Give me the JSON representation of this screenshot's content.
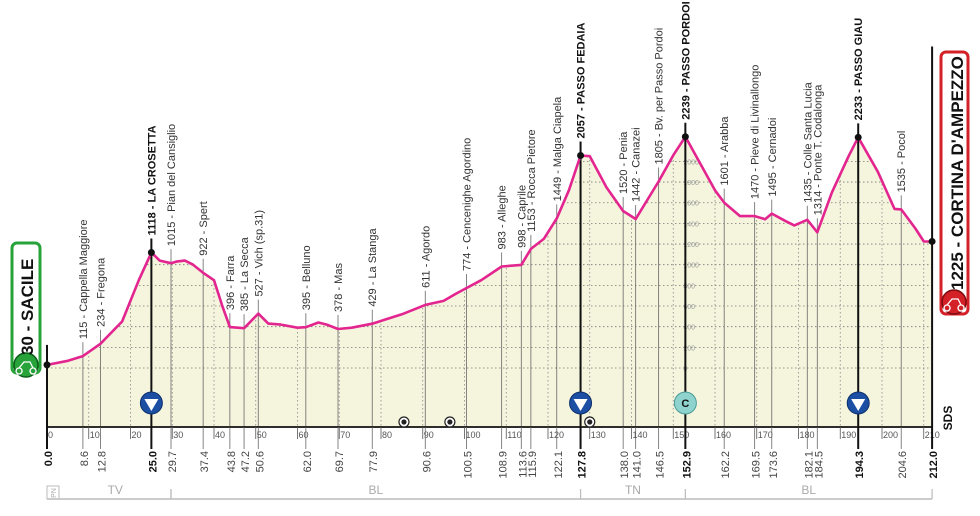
{
  "chart_data": {
    "type": "area",
    "xlabel": "",
    "ylabel": "",
    "xlim": [
      0,
      212
    ],
    "ylim": [
      0,
      2239
    ],
    "grid": true,
    "colors": {
      "line": "#e3258f",
      "fill": "#f5f5de",
      "start": "#27a33a",
      "finish": "#d42027",
      "kom": "#1c4fa3",
      "c_icon": "#8fd3cf"
    },
    "x_ticks": [
      0,
      10,
      20,
      30,
      40,
      50,
      60,
      70,
      80,
      90,
      100,
      110,
      120,
      130,
      140,
      150,
      160,
      170,
      180,
      190,
      200,
      210
    ],
    "y_ticks": [
      0,
      200,
      400,
      600,
      800,
      1000,
      1200,
      1400,
      1600,
      1800,
      2000
    ],
    "start": {
      "km": 0,
      "elevation": 30,
      "name": "SACILE",
      "label": "30 - SACILE"
    },
    "finish": {
      "km": 212,
      "elevation": 1225,
      "name": "CORTINA D'AMPEZZO",
      "label": "1225 - CORTINA D'AMPEZZO"
    },
    "waypoints": [
      {
        "km": 8.6,
        "elevation": 115,
        "name": "Cappella Maggiore",
        "label": "115 - Cappella Maggiore",
        "major": false
      },
      {
        "km": 12.8,
        "elevation": 234,
        "name": "Fregona",
        "label": "234 - Fregona",
        "major": false
      },
      {
        "km": 25.0,
        "elevation": 1118,
        "name": "LA CROSETTA",
        "label": "1118 - LA CROSETTA",
        "major": true
      },
      {
        "km": 29.7,
        "elevation": 1015,
        "name": "Pian del Cansiglio",
        "label": "1015 - Pian del Cansiglio",
        "major": false
      },
      {
        "km": 37.4,
        "elevation": 922,
        "name": "Spert",
        "label": "922 - Spert",
        "major": false
      },
      {
        "km": 43.8,
        "elevation": 396,
        "name": "Farra",
        "label": "396 - Farra",
        "major": false
      },
      {
        "km": 47.2,
        "elevation": 385,
        "name": "La Secca",
        "label": "385 - La Secca",
        "major": false
      },
      {
        "km": 50.6,
        "elevation": 527,
        "name": "Vich (sp.31)",
        "label": "527 - Vich (sp.31)",
        "major": false
      },
      {
        "km": 62.0,
        "elevation": 395,
        "name": "Belluno",
        "label": "395 - Belluno",
        "major": false
      },
      {
        "km": 69.7,
        "elevation": 378,
        "name": "Mas",
        "label": "378 - Mas",
        "major": false
      },
      {
        "km": 77.9,
        "elevation": 429,
        "name": "La Stanga",
        "label": "429 - La Stanga",
        "major": false
      },
      {
        "km": 90.6,
        "elevation": 611,
        "name": "Agordo",
        "label": "611 - Agordo",
        "major": false
      },
      {
        "km": 100.5,
        "elevation": 774,
        "name": "Cencenighe Agordino",
        "label": "774 - Cencenighe Agordino",
        "major": false
      },
      {
        "km": 108.9,
        "elevation": 983,
        "name": "Alleghe",
        "label": "983 - Alleghe",
        "major": false
      },
      {
        "km": 113.6,
        "elevation": 998,
        "name": "Caprile",
        "label": "998 - Caprile",
        "major": false
      },
      {
        "km": 115.9,
        "elevation": 1153,
        "name": "Rocca Pietore",
        "label": "1153 - Rocca Pietore",
        "major": false
      },
      {
        "km": 122.1,
        "elevation": 1449,
        "name": "Malga Ciapela",
        "label": "1449 - Malga Ciapela",
        "major": false
      },
      {
        "km": 127.8,
        "elevation": 2057,
        "name": "PASSO FEDAIA",
        "label": "2057 - PASSO FEDAIA",
        "major": true
      },
      {
        "km": 138.0,
        "elevation": 1520,
        "name": "Penia",
        "label": "1520 - Penia",
        "major": false
      },
      {
        "km": 141.0,
        "elevation": 1442,
        "name": "Canazei",
        "label": "1442 - Canazei",
        "major": false
      },
      {
        "km": 146.5,
        "elevation": 1805,
        "name": "Bv. per Passo Pordoi",
        "label": "1805 - Bv. per Passo Pordoi",
        "major": false
      },
      {
        "km": 152.9,
        "elevation": 2239,
        "name": "PASSO PORDOI",
        "label": "2239 - PASSO PORDOI",
        "major": true
      },
      {
        "km": 162.2,
        "elevation": 1601,
        "name": "Arabba",
        "label": "1601 - Arabba",
        "major": false
      },
      {
        "km": 169.5,
        "elevation": 1470,
        "name": "Pieve di Livinallongo",
        "label": "1470 - Pieve di Livinallongo",
        "major": false
      },
      {
        "km": 173.6,
        "elevation": 1495,
        "name": "Cernadoi",
        "label": "1495 - Cernadoi",
        "major": false
      },
      {
        "km": 182.1,
        "elevation": 1435,
        "name": "Colle Santa Lucia",
        "label": "1435 - Colle Santa Lucia",
        "major": false
      },
      {
        "km": 184.5,
        "elevation": 1314,
        "name": "Ponte T. Codalonga",
        "label": "1314 - Ponte T. Codalonga",
        "major": false
      },
      {
        "km": 194.3,
        "elevation": 2233,
        "name": "PASSO GIAU",
        "label": "2233 - PASSO GIAU",
        "major": true
      },
      {
        "km": 204.6,
        "elevation": 1535,
        "name": "Pocol",
        "label": "1535 - Pocol",
        "major": false
      }
    ],
    "km_labels": [
      {
        "km": 0.0,
        "label": "0.0",
        "major": true
      },
      {
        "km": 8.6,
        "label": "8.6",
        "major": false
      },
      {
        "km": 12.8,
        "label": "12.8",
        "major": false
      },
      {
        "km": 25.0,
        "label": "25.0",
        "major": true
      },
      {
        "km": 29.7,
        "label": "29.7",
        "major": false
      },
      {
        "km": 37.4,
        "label": "37.4",
        "major": false
      },
      {
        "km": 43.8,
        "label": "43.8",
        "major": false
      },
      {
        "km": 47.2,
        "label": "47.2",
        "major": false
      },
      {
        "km": 50.6,
        "label": "50.6",
        "major": false
      },
      {
        "km": 62.0,
        "label": "62.0",
        "major": false
      },
      {
        "km": 69.7,
        "label": "69.7",
        "major": false
      },
      {
        "km": 77.9,
        "label": "77.9",
        "major": false
      },
      {
        "km": 90.6,
        "label": "90.6",
        "major": false
      },
      {
        "km": 100.5,
        "label": "100.5",
        "major": false
      },
      {
        "km": 108.9,
        "label": "108.9",
        "major": false
      },
      {
        "km": 113.6,
        "label": "113.6",
        "major": false
      },
      {
        "km": 115.9,
        "label": "115.9",
        "major": false
      },
      {
        "km": 122.1,
        "label": "122.1",
        "major": false
      },
      {
        "km": 127.8,
        "label": "127.8",
        "major": true
      },
      {
        "km": 138.0,
        "label": "138.0",
        "major": false
      },
      {
        "km": 141.0,
        "label": "141.0",
        "major": false
      },
      {
        "km": 146.5,
        "label": "146.5",
        "major": false
      },
      {
        "km": 152.9,
        "label": "152.9",
        "major": true
      },
      {
        "km": 162.2,
        "label": "162.2",
        "major": false
      },
      {
        "km": 169.5,
        "label": "169.5",
        "major": false
      },
      {
        "km": 173.6,
        "label": "173.6",
        "major": false
      },
      {
        "km": 182.1,
        "label": "182.1",
        "major": false
      },
      {
        "km": 184.5,
        "label": "184.5",
        "major": false
      },
      {
        "km": 194.3,
        "label": "194.3",
        "major": true
      },
      {
        "km": 204.6,
        "label": "204.6",
        "major": false
      },
      {
        "km": 212.0,
        "label": "212.0",
        "major": true
      }
    ],
    "profile": [
      [
        0,
        30
      ],
      [
        5,
        70
      ],
      [
        8.6,
        115
      ],
      [
        12.8,
        234
      ],
      [
        18,
        450
      ],
      [
        22,
        850
      ],
      [
        25,
        1118
      ],
      [
        27,
        1040
      ],
      [
        29.7,
        1015
      ],
      [
        31,
        1030
      ],
      [
        33,
        1040
      ],
      [
        35,
        1000
      ],
      [
        37.4,
        922
      ],
      [
        40,
        850
      ],
      [
        42,
        600
      ],
      [
        43.8,
        396
      ],
      [
        47.2,
        385
      ],
      [
        50.6,
        527
      ],
      [
        53,
        430
      ],
      [
        56,
        420
      ],
      [
        60,
        390
      ],
      [
        62,
        395
      ],
      [
        65,
        440
      ],
      [
        67,
        420
      ],
      [
        69.7,
        378
      ],
      [
        73,
        390
      ],
      [
        77.9,
        429
      ],
      [
        85,
        520
      ],
      [
        90.6,
        611
      ],
      [
        95,
        650
      ],
      [
        98,
        720
      ],
      [
        100.5,
        774
      ],
      [
        104,
        850
      ],
      [
        108.9,
        983
      ],
      [
        113.6,
        998
      ],
      [
        115.9,
        1153
      ],
      [
        119,
        1250
      ],
      [
        122.1,
        1449
      ],
      [
        125,
        1720
      ],
      [
        127.8,
        2057
      ],
      [
        130,
        2050
      ],
      [
        134,
        1750
      ],
      [
        138,
        1520
      ],
      [
        141,
        1442
      ],
      [
        146.5,
        1805
      ],
      [
        150,
        2060
      ],
      [
        152.9,
        2239
      ],
      [
        157,
        1940
      ],
      [
        160,
        1720
      ],
      [
        162.2,
        1601
      ],
      [
        166,
        1470
      ],
      [
        169.5,
        1470
      ],
      [
        172,
        1440
      ],
      [
        173.6,
        1495
      ],
      [
        177,
        1420
      ],
      [
        179,
        1380
      ],
      [
        182.1,
        1435
      ],
      [
        184.5,
        1314
      ],
      [
        188,
        1700
      ],
      [
        192,
        2050
      ],
      [
        194.3,
        2233
      ],
      [
        199,
        1900
      ],
      [
        203,
        1540
      ],
      [
        204.6,
        1535
      ],
      [
        208,
        1350
      ],
      [
        210,
        1225
      ],
      [
        212,
        1225
      ]
    ],
    "kom_markers": [
      25.0,
      127.8,
      194.3
    ],
    "c_marker": {
      "km": 152.9,
      "label": "C"
    },
    "sprint_markers": [
      85.5,
      96.5,
      130.0
    ],
    "regions": [
      {
        "code": "PN",
        "from": 0,
        "to": 3
      },
      {
        "code": "TV",
        "from": 3,
        "to": 29.7
      },
      {
        "code": "BL",
        "from": 29.7,
        "to": 127.8
      },
      {
        "code": "TN",
        "from": 127.8,
        "to": 152.9
      },
      {
        "code": "BL",
        "from": 152.9,
        "to": 212
      }
    ],
    "logo": "SDS"
  }
}
